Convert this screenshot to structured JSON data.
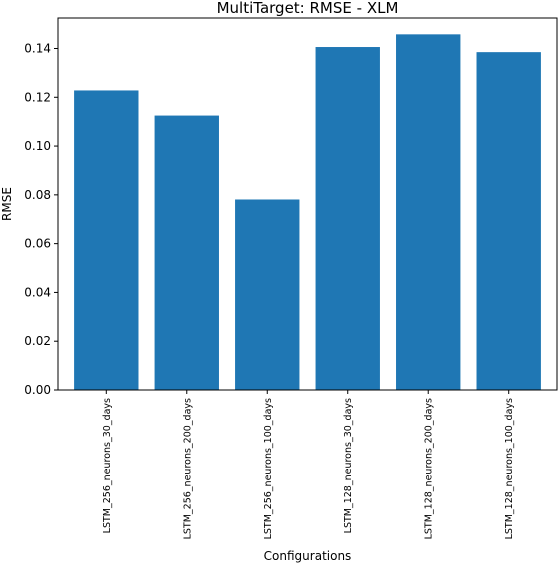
{
  "chart_data": {
    "type": "bar",
    "title": "MultiTarget: RMSE - XLM",
    "xlabel": "Configurations",
    "ylabel": "RMSE",
    "categories": [
      "LSTM_256_neurons_30_days",
      "LSTM_256_neurons_200_days",
      "LSTM_256_neurons_100_days",
      "LSTM_128_neurons_30_days",
      "LSTM_128_neurons_200_days",
      "LSTM_128_neurons_100_days"
    ],
    "values": [
      0.1228,
      0.1125,
      0.0781,
      0.1406,
      0.1458,
      0.1385
    ],
    "ylim": [
      0,
      0.1525
    ],
    "yticks": [
      0.0,
      0.02,
      0.04,
      0.06,
      0.08,
      0.1,
      0.12,
      0.14
    ],
    "ytick_labels": [
      "0.00",
      "0.02",
      "0.04",
      "0.06",
      "0.08",
      "0.10",
      "0.12",
      "0.14"
    ],
    "bar_color": "#1f77b4",
    "grid": false,
    "legend": "none"
  }
}
